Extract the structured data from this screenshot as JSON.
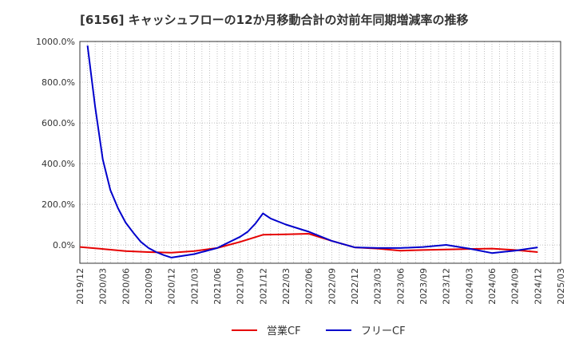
{
  "chart_data": {
    "type": "line",
    "title": "[6156]  キャッシュフローの12か月移動合計の対前年同期増減率の推移",
    "y_ticks": [
      "1000.0%",
      "800.0%",
      "600.0%",
      "400.0%",
      "200.0%",
      "0.0%"
    ],
    "x_ticks": [
      "2019/12",
      "2020/03",
      "2020/06",
      "2020/09",
      "2020/12",
      "2021/03",
      "2021/06",
      "2021/09",
      "2021/12",
      "2022/03",
      "2022/06",
      "2022/09",
      "2022/12",
      "2023/03",
      "2023/06",
      "2023/09",
      "2023/12",
      "2024/03",
      "2024/06",
      "2024/09",
      "2024/12",
      "2025/03"
    ],
    "ylim": [
      -90,
      1000
    ],
    "xlim": [
      "2019/12",
      "2025/03"
    ],
    "grid": true,
    "legend_position": "bottom-center",
    "series": [
      {
        "name": "営業CF",
        "color": "#e60000",
        "points": [
          [
            "2019/12",
            -10
          ],
          [
            "2020/03",
            -20
          ],
          [
            "2020/06",
            -30
          ],
          [
            "2020/09",
            -35
          ],
          [
            "2020/12",
            -38
          ],
          [
            "2021/03",
            -30
          ],
          [
            "2021/06",
            -15
          ],
          [
            "2021/09",
            15
          ],
          [
            "2021/12",
            50
          ],
          [
            "2022/03",
            52
          ],
          [
            "2022/06",
            55
          ],
          [
            "2022/09",
            20
          ],
          [
            "2022/12",
            -12
          ],
          [
            "2023/03",
            -18
          ],
          [
            "2023/06",
            -28
          ],
          [
            "2023/09",
            -25
          ],
          [
            "2023/12",
            -22
          ],
          [
            "2024/03",
            -20
          ],
          [
            "2024/06",
            -18
          ],
          [
            "2024/09",
            -25
          ],
          [
            "2024/12",
            -35
          ]
        ]
      },
      {
        "name": "フリーCF",
        "color": "#0000cc",
        "points": [
          [
            "2020/01",
            980
          ],
          [
            "2020/02",
            680
          ],
          [
            "2020/03",
            420
          ],
          [
            "2020/04",
            270
          ],
          [
            "2020/05",
            180
          ],
          [
            "2020/06",
            110
          ],
          [
            "2020/07",
            60
          ],
          [
            "2020/08",
            15
          ],
          [
            "2020/09",
            -15
          ],
          [
            "2020/10",
            -35
          ],
          [
            "2020/11",
            -50
          ],
          [
            "2020/12",
            -62
          ],
          [
            "2021/03",
            -45
          ],
          [
            "2021/06",
            -15
          ],
          [
            "2021/09",
            40
          ],
          [
            "2021/10",
            65
          ],
          [
            "2021/11",
            105
          ],
          [
            "2021/12",
            155
          ],
          [
            "2022/01",
            130
          ],
          [
            "2022/03",
            100
          ],
          [
            "2022/06",
            65
          ],
          [
            "2022/09",
            20
          ],
          [
            "2022/12",
            -12
          ],
          [
            "2023/03",
            -15
          ],
          [
            "2023/06",
            -15
          ],
          [
            "2023/09",
            -10
          ],
          [
            "2023/12",
            0
          ],
          [
            "2024/03",
            -18
          ],
          [
            "2024/06",
            -40
          ],
          [
            "2024/09",
            -28
          ],
          [
            "2024/12",
            -12
          ]
        ]
      }
    ]
  }
}
